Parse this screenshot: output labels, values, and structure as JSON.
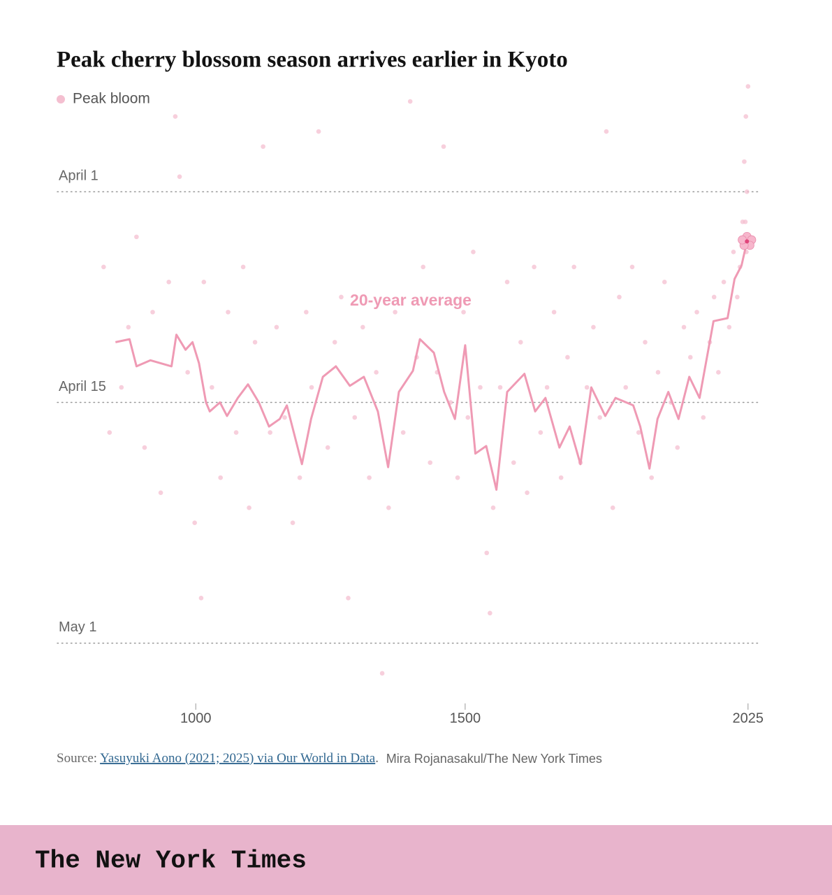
{
  "chart_data": {
    "type": "scatter",
    "title": "Peak cherry blossom season arrives earlier in Kyoto",
    "series": [
      {
        "name": "Peak bloom",
        "type": "scatter",
        "color": "#f4bfd0",
        "x": [
          829,
          840,
          862,
          875,
          890,
          905,
          920,
          935,
          950,
          962,
          970,
          985,
          998,
          1010,
          1015,
          1030,
          1046,
          1060,
          1075,
          1088,
          1099,
          1110,
          1125,
          1138,
          1150,
          1165,
          1180,
          1193,
          1205,
          1215,
          1228,
          1245,
          1258,
          1270,
          1283,
          1295,
          1310,
          1322,
          1335,
          1346,
          1358,
          1370,
          1385,
          1398,
          1410,
          1422,
          1435,
          1448,
          1460,
          1473,
          1486,
          1497,
          1505,
          1515,
          1528,
          1540,
          1546,
          1552,
          1565,
          1578,
          1590,
          1603,
          1615,
          1628,
          1640,
          1652,
          1665,
          1678,
          1690,
          1702,
          1714,
          1726,
          1738,
          1750,
          1762,
          1774,
          1786,
          1798,
          1810,
          1822,
          1834,
          1846,
          1858,
          1870,
          1882,
          1894,
          1906,
          1918,
          1930,
          1942,
          1954,
          1962,
          1970,
          1980,
          1990,
          1998,
          2005,
          2010,
          2015,
          2018,
          2020,
          2021,
          2022,
          2023,
          2024,
          2025
        ],
        "values": [
          96,
          107,
          104,
          100,
          94,
          108,
          99,
          111,
          97,
          86,
          90,
          103,
          113,
          118,
          97,
          104,
          110,
          99,
          107,
          96,
          112,
          101,
          88,
          107,
          100,
          106,
          113,
          110,
          99,
          104,
          87,
          108,
          101,
          98,
          118,
          106,
          100,
          110,
          103,
          123,
          112,
          99,
          107,
          85,
          102,
          96,
          109,
          103,
          88,
          105,
          110,
          99,
          106,
          95,
          104,
          115,
          119,
          112,
          104,
          97,
          109,
          101,
          111,
          96,
          107,
          104,
          99,
          110,
          102,
          96,
          109,
          104,
          100,
          106,
          87,
          112,
          98,
          104,
          96,
          107,
          101,
          110,
          103,
          97,
          105,
          108,
          100,
          102,
          99,
          106,
          101,
          98,
          103,
          97,
          100,
          95,
          98,
          96,
          93,
          89,
          93,
          86,
          95,
          91,
          94,
          84
        ]
      },
      {
        "name": "20-year average",
        "type": "line",
        "color": "#ef9ab4",
        "x": [
          851,
          877,
          890,
          916,
          955,
          964,
          981,
          994,
          1006,
          1019,
          1026,
          1045,
          1058,
          1078,
          1097,
          1117,
          1136,
          1156,
          1169,
          1182,
          1197,
          1214,
          1236,
          1260,
          1286,
          1312,
          1338,
          1357,
          1377,
          1403,
          1416,
          1442,
          1461,
          1481,
          1500,
          1519,
          1539,
          1558,
          1578,
          1610,
          1630,
          1649,
          1675,
          1694,
          1714,
          1734,
          1760,
          1779,
          1812,
          1825,
          1842,
          1857,
          1877,
          1896,
          1916,
          1935,
          1961,
          1987,
          2000,
          2013,
          2023
        ],
        "values": [
          101.0,
          100.8,
          102.6,
          102.2,
          102.6,
          100.5,
          101.5,
          101.0,
          102.4,
          105.0,
          105.6,
          105.0,
          105.9,
          104.7,
          103.8,
          105.0,
          106.6,
          106.1,
          105.2,
          107.0,
          109.1,
          106.1,
          103.3,
          102.6,
          103.9,
          103.3,
          105.6,
          109.3,
          104.3,
          102.9,
          100.8,
          101.7,
          104.3,
          106.1,
          101.2,
          108.4,
          107.9,
          110.8,
          104.3,
          103.1,
          105.6,
          104.7,
          108.0,
          106.6,
          109.1,
          104.0,
          105.9,
          104.7,
          105.2,
          106.6,
          109.4,
          106.1,
          104.3,
          106.1,
          103.3,
          104.7,
          99.6,
          99.4,
          96.8,
          95.9,
          94.3
        ]
      }
    ],
    "xlim": [
      743,
      2046
    ],
    "xticks": [
      1000,
      1500,
      2025
    ],
    "ylim": [
      83,
      125
    ],
    "yticks": [
      {
        "value": 91,
        "label": "April 1"
      },
      {
        "value": 105,
        "label": "April 15"
      },
      {
        "value": 121,
        "label": "May 1"
      }
    ],
    "y_reversed": true,
    "grid": true,
    "source": {
      "label": "Source:",
      "link": "Yasuyuki Aono (2021; 2025) via Our World in Data",
      "end": ".",
      "credit": "Mira Rojanasakul/The New York Times"
    }
  },
  "footer": {
    "brand": "The New York Times"
  }
}
